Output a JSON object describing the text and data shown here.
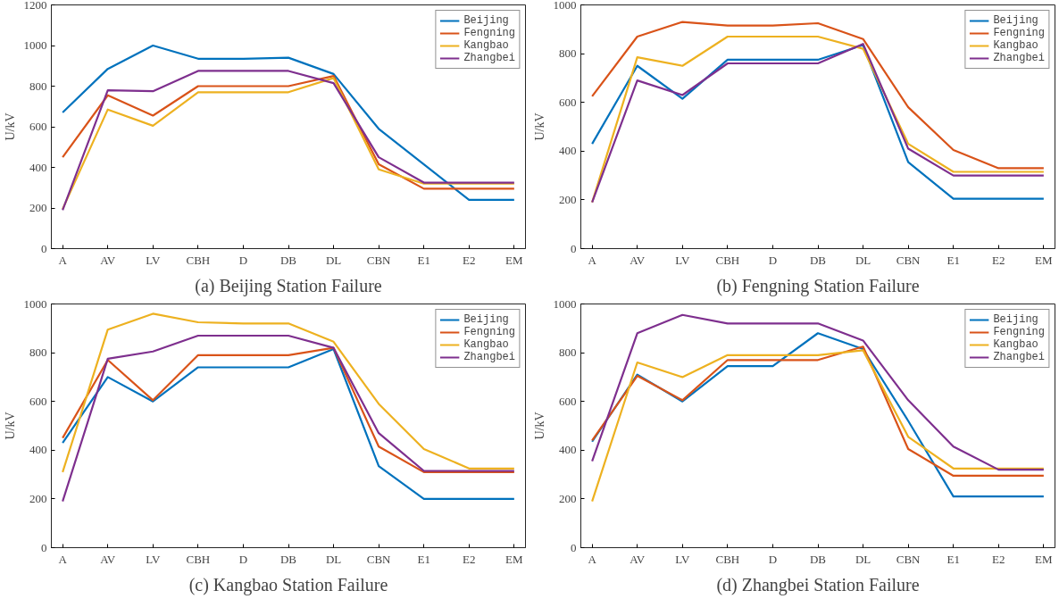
{
  "chart_data": [
    {
      "type": "line",
      "title": "(a) Beijing Station Failure",
      "ylabel": "U/kV",
      "categories": [
        "A",
        "AV",
        "LV",
        "CBH",
        "D",
        "DB",
        "DL",
        "CBN",
        "E1",
        "E2",
        "EM"
      ],
      "ylim": [
        0,
        1200
      ],
      "yticks": [
        0,
        200,
        400,
        600,
        800,
        1000,
        1200
      ],
      "grid": false,
      "legend": "top right",
      "marker": "none",
      "line_style": "solid",
      "series": [
        {
          "name": "Beijing",
          "color": "#0072bd",
          "values": [
            670,
            885,
            1000,
            935,
            935,
            940,
            860,
            590,
            415,
            240,
            240
          ]
        },
        {
          "name": "Fengning",
          "color": "#d95319",
          "values": [
            450,
            755,
            655,
            800,
            800,
            800,
            850,
            415,
            295,
            295,
            295
          ]
        },
        {
          "name": "Kangbao",
          "color": "#edb120",
          "values": [
            195,
            685,
            605,
            770,
            770,
            770,
            840,
            390,
            320,
            320,
            320
          ]
        },
        {
          "name": "Zhangbei",
          "color": "#7e2f8e",
          "values": [
            190,
            780,
            775,
            875,
            875,
            875,
            815,
            450,
            325,
            325,
            325
          ]
        }
      ]
    },
    {
      "type": "line",
      "title": "(b) Fengning Station Failure",
      "ylabel": "U/kV",
      "categories": [
        "A",
        "AV",
        "LV",
        "CBH",
        "D",
        "DB",
        "DL",
        "CBN",
        "E1",
        "E2",
        "EM"
      ],
      "ylim": [
        0,
        1000
      ],
      "yticks": [
        0,
        200,
        400,
        600,
        800,
        1000
      ],
      "grid": false,
      "legend": "top right",
      "marker": "none",
      "line_style": "solid",
      "series": [
        {
          "name": "Beijing",
          "color": "#0072bd",
          "values": [
            430,
            750,
            615,
            775,
            775,
            775,
            835,
            355,
            205,
            205,
            205
          ]
        },
        {
          "name": "Fengning",
          "color": "#d95319",
          "values": [
            625,
            870,
            930,
            915,
            915,
            925,
            860,
            580,
            405,
            330,
            330
          ]
        },
        {
          "name": "Kangbao",
          "color": "#edb120",
          "values": [
            190,
            785,
            750,
            870,
            870,
            870,
            820,
            430,
            315,
            315,
            315
          ]
        },
        {
          "name": "Zhangbei",
          "color": "#7e2f8e",
          "values": [
            190,
            690,
            630,
            760,
            760,
            760,
            840,
            410,
            300,
            300,
            300
          ]
        }
      ]
    },
    {
      "type": "line",
      "title": "(c) Kangbao Station Failure",
      "ylabel": "U/kV",
      "categories": [
        "A",
        "AV",
        "LV",
        "CBH",
        "D",
        "DB",
        "DL",
        "CBN",
        "E1",
        "E2",
        "EM"
      ],
      "ylim": [
        0,
        1000
      ],
      "yticks": [
        0,
        200,
        400,
        600,
        800,
        1000
      ],
      "grid": false,
      "legend": "top right",
      "marker": "none",
      "line_style": "solid",
      "series": [
        {
          "name": "Beijing",
          "color": "#0072bd",
          "values": [
            430,
            700,
            600,
            740,
            740,
            740,
            815,
            335,
            200,
            200,
            200
          ]
        },
        {
          "name": "Fengning",
          "color": "#d95319",
          "values": [
            450,
            770,
            605,
            790,
            790,
            790,
            820,
            415,
            310,
            310,
            310
          ]
        },
        {
          "name": "Kangbao",
          "color": "#edb120",
          "values": [
            310,
            895,
            960,
            925,
            920,
            920,
            845,
            590,
            405,
            325,
            325
          ]
        },
        {
          "name": "Zhangbei",
          "color": "#7e2f8e",
          "values": [
            190,
            775,
            805,
            870,
            870,
            870,
            820,
            470,
            315,
            315,
            315
          ]
        }
      ]
    },
    {
      "type": "line",
      "title": "(d) Zhangbei Station Failure",
      "ylabel": "U/kV",
      "categories": [
        "A",
        "AV",
        "LV",
        "CBH",
        "D",
        "DB",
        "DL",
        "CBN",
        "E1",
        "E2",
        "EM"
      ],
      "ylim": [
        0,
        1000
      ],
      "yticks": [
        0,
        200,
        400,
        600,
        800,
        1000
      ],
      "grid": false,
      "legend": "top right",
      "marker": "none",
      "line_style": "solid",
      "series": [
        {
          "name": "Beijing",
          "color": "#0072bd",
          "values": [
            435,
            710,
            600,
            745,
            745,
            880,
            815,
            520,
            210,
            210,
            210
          ]
        },
        {
          "name": "Fengning",
          "color": "#d95319",
          "values": [
            440,
            705,
            605,
            770,
            770,
            770,
            825,
            405,
            295,
            295,
            295
          ]
        },
        {
          "name": "Kangbao",
          "color": "#edb120",
          "values": [
            190,
            760,
            700,
            790,
            790,
            790,
            810,
            455,
            325,
            325,
            325
          ]
        },
        {
          "name": "Zhangbei",
          "color": "#7e2f8e",
          "values": [
            355,
            880,
            955,
            920,
            920,
            920,
            850,
            605,
            415,
            320,
            320
          ]
        }
      ]
    }
  ]
}
